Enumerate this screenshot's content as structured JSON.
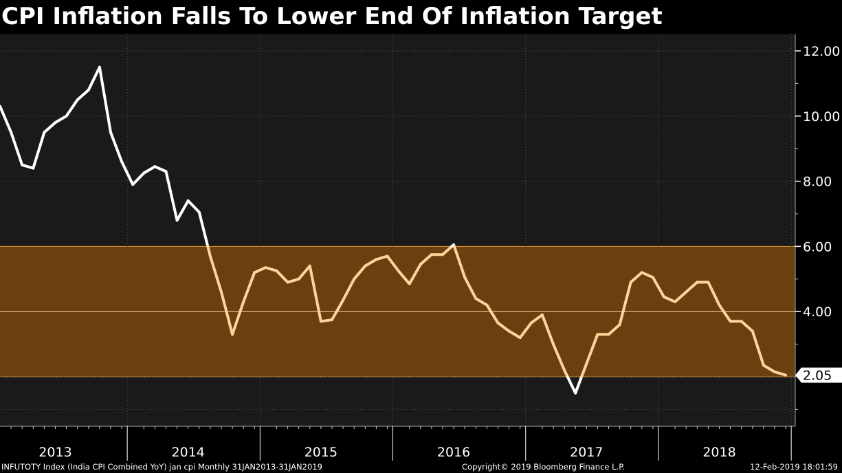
{
  "title": "CPI Inflation Falls To Lower End Of Inflation Target",
  "footer": {
    "left": "INFUTOTY Index (India CPI Combined YoY) jan cpi  Monthly 31JAN2013-31JAN2019",
    "copyright": "Copyright© 2019 Bloomberg Finance L.P.",
    "timestamp": "12-Feb-2019 18:01:59"
  },
  "colors": {
    "background": "#000000",
    "plot_background": "#1a1a1a",
    "target_band": "#6b3f10",
    "band_edge": "#e09a3a",
    "line_outside_band": "#ffffff",
    "line_inside_band": "#ffd49a"
  },
  "chart_data": {
    "type": "line",
    "title": "CPI Inflation Falls To Lower End Of Inflation Target",
    "x_start": "2013-01",
    "x_end": "2019-01",
    "frequency": "Monthly",
    "x_tick_labels": [
      "2013",
      "2014",
      "2015",
      "2016",
      "2017",
      "2018"
    ],
    "y_tick_labels": [
      "12.00",
      "10.00",
      "8.00",
      "6.00",
      "4.00"
    ],
    "ylim": [
      0.5,
      12.5
    ],
    "y_axis_position": "right",
    "grid": true,
    "target_band": [
      2,
      6
    ],
    "target_midline": 4,
    "last_value_label": "2.05",
    "series": [
      {
        "values": [
          10.3,
          9.5,
          8.5,
          8.4,
          9.5,
          9.8,
          10.0,
          10.5,
          10.8,
          11.5,
          9.5,
          8.6,
          7.9,
          8.25,
          8.45,
          8.3,
          6.8,
          7.4,
          7.05,
          5.7,
          4.6,
          3.3,
          4.3,
          5.2,
          5.35,
          5.25,
          4.9,
          5.0,
          5.4,
          3.7,
          3.75,
          4.35,
          5.0,
          5.4,
          5.6,
          5.7,
          5.25,
          4.85,
          5.45,
          5.75,
          5.75,
          6.05,
          5.05,
          4.4,
          4.2,
          3.65,
          3.4,
          3.2,
          3.65,
          3.9,
          3.0,
          2.2,
          1.5,
          2.4,
          3.3,
          3.3,
          3.6,
          4.9,
          5.2,
          5.05,
          4.45,
          4.3,
          4.6,
          4.9,
          4.9,
          4.2,
          3.7,
          3.7,
          3.4,
          2.35,
          2.15,
          2.05
        ]
      }
    ]
  }
}
